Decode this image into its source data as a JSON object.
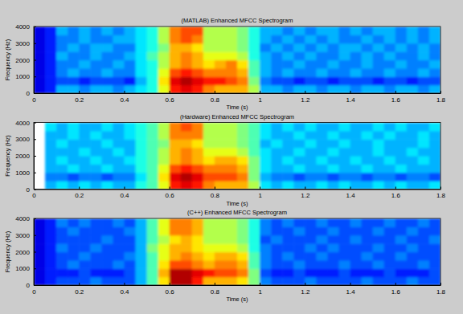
{
  "chart_data": [
    {
      "type": "heatmap",
      "title": "(MATLAB) Enhanced MFCC Spectrogram",
      "x_label": "Time (s)",
      "y_label": "Frequency (Hz)",
      "xlim": [
        0,
        1.8
      ],
      "ylim": [
        0,
        4000
      ],
      "xticks": [
        0,
        0.2,
        0.4,
        0.6,
        0.8,
        1,
        1.2,
        1.4,
        1.6,
        1.8
      ],
      "yticks": [
        0,
        1000,
        2000,
        3000,
        4000
      ],
      "zlim": [
        0,
        10
      ],
      "x_edges": [
        0,
        0.05,
        0.1,
        0.15,
        0.2,
        0.25,
        0.3,
        0.35,
        0.4,
        0.45,
        0.5,
        0.55,
        0.6,
        0.65,
        0.7,
        0.75,
        0.8,
        0.85,
        0.9,
        0.95,
        1,
        1.05,
        1.1,
        1.15,
        1.2,
        1.25,
        1.3,
        1.35,
        1.4,
        1.45,
        1.5,
        1.55,
        1.6,
        1.65,
        1.7,
        1.75,
        1.8
      ],
      "y_edges": [
        0,
        500,
        1000,
        1500,
        2000,
        2500,
        3000,
        3500,
        4000
      ],
      "cells": [
        [
          1,
          1.5,
          3,
          3,
          2.5,
          3,
          3,
          2.5,
          3,
          3.5,
          4,
          6,
          8.5,
          9,
          8.5,
          7.5,
          7,
          7,
          7,
          5.5,
          3,
          3,
          2.5,
          3,
          3,
          2.5,
          3,
          3,
          2.5,
          3,
          3,
          2.5,
          3,
          3,
          2.5,
          3
        ],
        [
          1,
          1.5,
          2,
          2,
          1.5,
          2,
          2,
          2,
          1.5,
          3,
          4,
          6.5,
          9,
          9.5,
          9,
          8.5,
          8.5,
          8,
          7.5,
          5,
          2.5,
          2,
          2,
          1.5,
          2,
          2,
          1.5,
          2,
          2,
          2,
          1.5,
          2,
          2,
          1.5,
          2,
          2
        ],
        [
          1,
          1.5,
          2.5,
          3,
          2.5,
          2.5,
          3,
          2.5,
          2.5,
          3.5,
          4,
          6,
          8,
          8.5,
          8,
          7.5,
          7.5,
          7.5,
          7,
          4.5,
          3,
          2.5,
          3,
          2.5,
          2.5,
          3,
          2.5,
          2.5,
          3,
          2.5,
          2.5,
          3,
          2.5,
          2.5,
          3,
          2.5
        ],
        [
          1,
          1.5,
          2.5,
          2.5,
          3,
          2.5,
          2.5,
          3,
          2.5,
          3.5,
          4,
          5.5,
          7,
          7.5,
          7,
          6.5,
          7,
          7.5,
          6.5,
          4.5,
          3,
          2.5,
          2.5,
          3,
          2.5,
          2.5,
          3,
          2.5,
          2.5,
          3,
          2.5,
          2.5,
          3,
          2.5,
          2.5,
          3
        ],
        [
          1,
          1.5,
          3,
          2.5,
          2.5,
          3,
          2.5,
          2.5,
          3,
          3.5,
          4.5,
          5.5,
          7,
          7.5,
          7,
          6,
          6,
          6,
          5.5,
          4,
          3,
          2.5,
          3,
          2.5,
          3,
          2.5,
          2.5,
          3,
          2.5,
          3,
          2.5,
          3,
          2.5,
          2.5,
          3,
          2.5
        ],
        [
          1,
          1.5,
          2.5,
          3,
          2.5,
          3,
          3,
          2.5,
          2.5,
          3.5,
          4,
          5,
          7,
          7,
          6.5,
          5.5,
          5.5,
          5.5,
          5,
          4,
          2.5,
          3,
          2.5,
          3,
          2.5,
          3,
          2.5,
          3,
          3,
          2.5,
          3,
          2.5,
          3,
          2.5,
          3,
          2.5
        ],
        [
          1,
          1.5,
          2.5,
          2.5,
          3,
          2.5,
          2.5,
          3,
          3,
          3.5,
          4,
          5.5,
          7.5,
          8,
          7.5,
          5.5,
          5.5,
          5.5,
          5,
          4,
          3,
          2.5,
          3,
          2.5,
          3,
          2.5,
          3,
          2.5,
          2.5,
          3,
          2.5,
          3,
          2.5,
          3,
          2.5,
          3
        ],
        [
          1,
          1.5,
          3,
          2.5,
          3,
          2.5,
          3,
          2.5,
          3,
          3.5,
          4,
          5.5,
          7.5,
          8,
          8,
          5.5,
          5.5,
          5.5,
          5,
          4,
          3,
          3,
          2.5,
          3,
          2.5,
          3,
          3,
          2.5,
          3,
          2.5,
          3,
          3,
          2.5,
          3,
          2.5,
          3
        ]
      ]
    },
    {
      "type": "heatmap",
      "title": "(Hardware) Enhanced MFCC Spectrogram",
      "x_label": "Time (s)",
      "y_label": "Frequency (Hz)",
      "xlim": [
        0,
        1.8
      ],
      "ylim": [
        0,
        4000
      ],
      "xticks": [
        0,
        0.2,
        0.4,
        0.6,
        0.8,
        1,
        1.2,
        1.4,
        1.6,
        1.8
      ],
      "yticks": [
        0,
        1000,
        2000,
        3000,
        4000
      ],
      "zlim": [
        0,
        10
      ],
      "x_edges": [
        0,
        0.05,
        0.1,
        0.15,
        0.2,
        0.25,
        0.3,
        0.35,
        0.4,
        0.45,
        0.5,
        0.55,
        0.6,
        0.65,
        0.7,
        0.75,
        0.8,
        0.85,
        0.9,
        0.95,
        1,
        1.05,
        1.1,
        1.15,
        1.2,
        1.25,
        1.3,
        1.35,
        1.4,
        1.45,
        1.5,
        1.55,
        1.6,
        1.65,
        1.7,
        1.75,
        1.8
      ],
      "y_edges": [
        0,
        500,
        1000,
        1500,
        2000,
        2500,
        3000,
        3500,
        4000
      ],
      "cells": [
        [
          null,
          3,
          3.5,
          3,
          3.5,
          3,
          3.5,
          3,
          3,
          4,
          4.5,
          6,
          8.5,
          9,
          8.5,
          7.5,
          7,
          7,
          7,
          5.5,
          3.5,
          3,
          3.5,
          3,
          3,
          3.5,
          3,
          3.5,
          3,
          3,
          3.5,
          3,
          3.5,
          3,
          3,
          3.5
        ],
        [
          null,
          2.5,
          2.5,
          2,
          2.5,
          2.5,
          2,
          2.5,
          2.5,
          3.5,
          4.5,
          6.5,
          9,
          9.5,
          9,
          8,
          8,
          8,
          7.5,
          5,
          3,
          2.5,
          2.5,
          2,
          2.5,
          2.5,
          2,
          2.5,
          2.5,
          2,
          2.5,
          2.5,
          2,
          2.5,
          2.5,
          2
        ],
        [
          null,
          3,
          3,
          3.5,
          3,
          3,
          3.5,
          3,
          3,
          4,
          4.5,
          6,
          8,
          8.5,
          8,
          7.5,
          7.5,
          7.5,
          7,
          5,
          3.5,
          3,
          3,
          3.5,
          3,
          3,
          3.5,
          3,
          3,
          3.5,
          3,
          3,
          3.5,
          3,
          3,
          3
        ],
        [
          null,
          3,
          3.5,
          3,
          3,
          3.5,
          3,
          3,
          3.5,
          4,
          4.5,
          5.5,
          7,
          7.5,
          7,
          6.5,
          7,
          7,
          6.5,
          5,
          3.5,
          3,
          3.5,
          3,
          3,
          3.5,
          3,
          3,
          3.5,
          3,
          3,
          3.5,
          3,
          3,
          3.5,
          3
        ],
        [
          null,
          3,
          3,
          3,
          3.5,
          3,
          3,
          3.5,
          3,
          4,
          4.5,
          5.5,
          7,
          7.5,
          7,
          6,
          6,
          6,
          5.5,
          4.5,
          3.5,
          3,
          3,
          3.5,
          3,
          3,
          3.5,
          3,
          3,
          3,
          3.5,
          3,
          3,
          3.5,
          3,
          3
        ],
        [
          null,
          3,
          3.5,
          3,
          3,
          3,
          3.5,
          3,
          3,
          4,
          4.5,
          5,
          7,
          7,
          6.5,
          5.5,
          5.5,
          5.5,
          5,
          4.5,
          3,
          3.5,
          3,
          3,
          3.5,
          3,
          3,
          3.5,
          3,
          3,
          3.5,
          3,
          3,
          3,
          3.5,
          3
        ],
        [
          null,
          3,
          3,
          3.5,
          3,
          3.5,
          3,
          3,
          3.5,
          4,
          4.5,
          5.5,
          7.5,
          7.5,
          7.5,
          5.5,
          5.5,
          5.5,
          5,
          4.5,
          3.5,
          3,
          3,
          3.5,
          3,
          3,
          3.5,
          3,
          3,
          3.5,
          3,
          3.5,
          3,
          3,
          3.5,
          3
        ],
        [
          null,
          3.5,
          3,
          3.5,
          3,
          3,
          3.5,
          3,
          3.5,
          4,
          4.5,
          5.5,
          7.5,
          8,
          7.5,
          5.5,
          5.5,
          5.5,
          5,
          4.5,
          3.5,
          3,
          3.5,
          3,
          3.5,
          3,
          3,
          3.5,
          3,
          3,
          3.5,
          3,
          3.5,
          3,
          3,
          3.5
        ]
      ]
    },
    {
      "type": "heatmap",
      "title": "(C++) Enhanced MFCC Spectrogram",
      "x_label": "Time (s)",
      "y_label": "Frequency (Hz)",
      "xlim": [
        0,
        1.8
      ],
      "ylim": [
        0,
        4000
      ],
      "xticks": [
        0,
        0.2,
        0.4,
        0.6,
        0.8,
        1,
        1.2,
        1.4,
        1.6,
        1.8
      ],
      "yticks": [
        0,
        1000,
        2000,
        3000,
        4000
      ],
      "zlim": [
        0,
        10
      ],
      "x_edges": [
        0,
        0.05,
        0.1,
        0.15,
        0.2,
        0.25,
        0.3,
        0.35,
        0.4,
        0.45,
        0.5,
        0.55,
        0.6,
        0.65,
        0.7,
        0.75,
        0.8,
        0.85,
        0.9,
        0.95,
        1,
        1.05,
        1.1,
        1.15,
        1.2,
        1.25,
        1.3,
        1.35,
        1.4,
        1.45,
        1.5,
        1.55,
        1.6,
        1.65,
        1.7,
        1.75,
        1.8
      ],
      "y_edges": [
        0,
        500,
        1000,
        1500,
        2000,
        2500,
        3000,
        3500,
        4000
      ],
      "cells": [
        [
          1,
          1.5,
          2,
          2,
          2,
          2.5,
          2,
          2,
          2,
          3,
          4.5,
          6.5,
          9.5,
          9.5,
          8.5,
          7,
          7,
          7,
          6.5,
          5,
          2.5,
          2,
          2,
          2,
          2.5,
          2,
          2,
          2,
          2,
          2.5,
          2,
          2,
          2,
          2.5,
          2,
          2
        ],
        [
          1,
          1.5,
          1.5,
          1.5,
          2,
          1.5,
          1.5,
          1.5,
          2,
          3,
          4.5,
          7,
          9.5,
          9.5,
          9,
          8.5,
          8,
          8,
          7.5,
          5,
          2,
          1.5,
          1.5,
          2,
          1.5,
          1.5,
          1.5,
          2,
          1.5,
          1.5,
          1.5,
          2,
          1.5,
          1.5,
          1.5,
          2
        ],
        [
          1,
          1.5,
          2,
          2.5,
          2,
          2,
          2,
          2.5,
          2,
          3,
          4.5,
          6.5,
          8,
          8,
          7.5,
          7,
          7.5,
          7.5,
          7,
          4.5,
          2.5,
          2,
          2,
          2.5,
          2,
          2,
          2,
          2.5,
          2,
          2,
          2.5,
          2,
          2,
          2,
          2.5,
          2
        ],
        [
          1,
          1.5,
          2,
          2,
          2.5,
          2,
          2,
          2,
          2.5,
          3,
          4.5,
          6,
          7,
          7.5,
          7,
          6.5,
          7,
          7,
          6.5,
          4.5,
          2.5,
          2,
          2.5,
          2,
          2,
          2.5,
          2,
          2,
          2,
          2.5,
          2,
          2,
          2.5,
          2,
          2,
          2
        ],
        [
          1,
          1.5,
          2.5,
          2,
          2,
          2.5,
          2,
          2,
          2,
          3,
          5,
          6,
          7,
          7,
          6.5,
          6,
          6,
          6,
          5.5,
          4,
          2.5,
          2,
          2,
          2,
          2.5,
          2,
          2.5,
          2,
          2,
          2,
          2.5,
          2,
          2,
          2.5,
          2,
          2
        ],
        [
          1,
          1.5,
          2,
          2,
          2,
          2,
          2.5,
          2,
          2,
          3,
          4.5,
          5.5,
          6.5,
          7,
          6.5,
          5.5,
          5.5,
          5.5,
          5,
          4,
          2,
          2.5,
          2,
          2,
          2,
          2.5,
          2,
          2,
          2.5,
          2,
          2,
          2,
          2.5,
          2,
          2,
          2.5
        ],
        [
          1,
          1.5,
          2,
          2.5,
          2,
          2,
          2,
          2,
          2.5,
          3,
          4.5,
          6,
          7.5,
          7.5,
          7,
          5.5,
          5.5,
          5.5,
          5,
          4,
          2.5,
          2,
          2,
          2.5,
          2,
          2,
          2.5,
          2,
          2,
          2,
          2.5,
          2,
          2,
          2.5,
          2,
          2
        ],
        [
          1,
          1.5,
          2.5,
          2,
          2.5,
          2,
          2,
          2.5,
          2,
          3,
          4.5,
          6,
          7.5,
          7.5,
          7,
          5.5,
          5.5,
          5.5,
          5,
          4,
          2.5,
          2,
          2.5,
          2,
          2,
          2.5,
          2,
          2,
          2.5,
          2,
          2,
          2.5,
          2,
          2,
          2.5,
          2
        ]
      ]
    }
  ]
}
